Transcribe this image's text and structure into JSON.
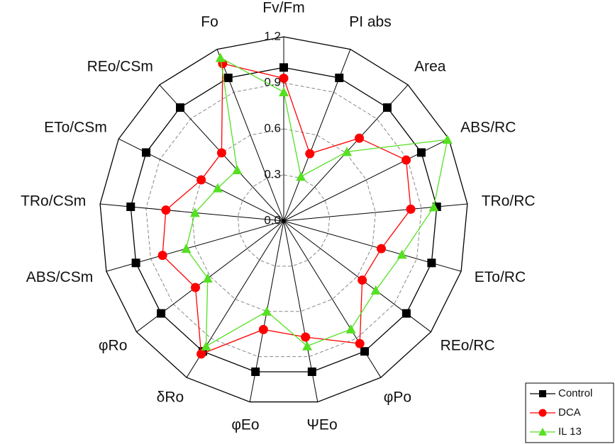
{
  "chart_data": {
    "type": "radar",
    "categories": [
      "Fv/Fm",
      "PI abs",
      "Area",
      "ABS/RC",
      "TRo/RC",
      "ETo/RC",
      "REo/RC",
      "φPo",
      "ΨEo",
      "φEo",
      "δRo",
      "φRo",
      "ABS/CSm",
      "TRo/CSm",
      "ETo/CSm",
      "REo/CSm",
      "Fo"
    ],
    "ylim": [
      0,
      1.2
    ],
    "yticks": [
      {
        "value": 0,
        "label": "0.0"
      },
      0.3,
      0.6,
      0.9,
      1.2
    ],
    "grid": true,
    "legend": "lower right",
    "series": [
      {
        "name": "Control",
        "color": "#000000",
        "marker": "square",
        "values": [
          1.0,
          1.0,
          1.0,
          1.0,
          1.0,
          1.0,
          1.0,
          1.0,
          1.0,
          1.0,
          1.0,
          1.0,
          1.0,
          1.0,
          1.0,
          1.0,
          1.0
        ]
      },
      {
        "name": "DCA",
        "color": "#ff0000",
        "marker": "circle",
        "values": [
          0.93,
          0.47,
          0.73,
          0.89,
          0.83,
          0.66,
          0.64,
          0.94,
          0.77,
          0.72,
          1.02,
          0.72,
          0.82,
          0.77,
          0.6,
          0.6,
          1.1
        ]
      },
      {
        "name": "IL 13",
        "color": "#55e022",
        "marker": "triangle",
        "values": [
          0.84,
          0.31,
          0.61,
          1.19,
          0.98,
          0.8,
          0.75,
          0.83,
          0.83,
          0.6,
          0.96,
          0.62,
          0.66,
          0.58,
          0.48,
          0.45,
          1.14
        ]
      }
    ]
  }
}
